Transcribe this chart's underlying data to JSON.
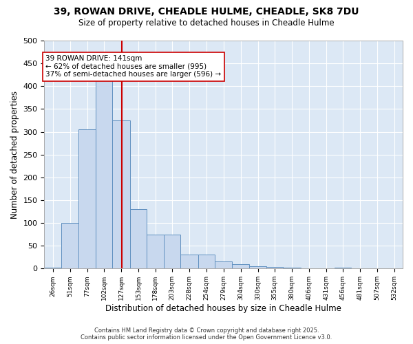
{
  "title": "39, ROWAN DRIVE, CHEADLE HULME, CHEADLE, SK8 7DU",
  "subtitle": "Size of property relative to detached houses in Cheadle Hulme",
  "xlabel": "Distribution of detached houses by size in Cheadle Hulme",
  "ylabel": "Number of detached properties",
  "bar_color": "#c8d8ee",
  "bar_edge_color": "#6090c0",
  "bg_color": "#dce8f5",
  "grid_color": "#ffffff",
  "vline_x": 141,
  "vline_color": "#cc0000",
  "annotation_text": "39 ROWAN DRIVE: 141sqm\n← 62% of detached houses are smaller (995)\n37% of semi-detached houses are larger (596) →",
  "annotation_box_color": "#ffffff",
  "annotation_box_edge": "#cc0000",
  "bins": [
    26,
    51,
    77,
    102,
    127,
    153,
    178,
    203,
    228,
    254,
    279,
    304,
    330,
    355,
    380,
    406,
    431,
    456,
    481,
    507,
    532
  ],
  "bin_labels": [
    "26sqm",
    "51sqm",
    "77sqm",
    "102sqm",
    "127sqm",
    "153sqm",
    "178sqm",
    "203sqm",
    "228sqm",
    "254sqm",
    "279sqm",
    "304sqm",
    "330sqm",
    "355sqm",
    "380sqm",
    "406sqm",
    "431sqm",
    "456sqm",
    "481sqm",
    "507sqm",
    "532sqm"
  ],
  "values": [
    2,
    100,
    305,
    420,
    325,
    130,
    75,
    75,
    30,
    30,
    15,
    10,
    5,
    3,
    2,
    1,
    0,
    2,
    0,
    1,
    0
  ],
  "ylim": [
    0,
    500
  ],
  "yticks": [
    0,
    50,
    100,
    150,
    200,
    250,
    300,
    350,
    400,
    450,
    500
  ],
  "footer": "Contains HM Land Registry data © Crown copyright and database right 2025.\nContains public sector information licensed under the Open Government Licence v3.0."
}
